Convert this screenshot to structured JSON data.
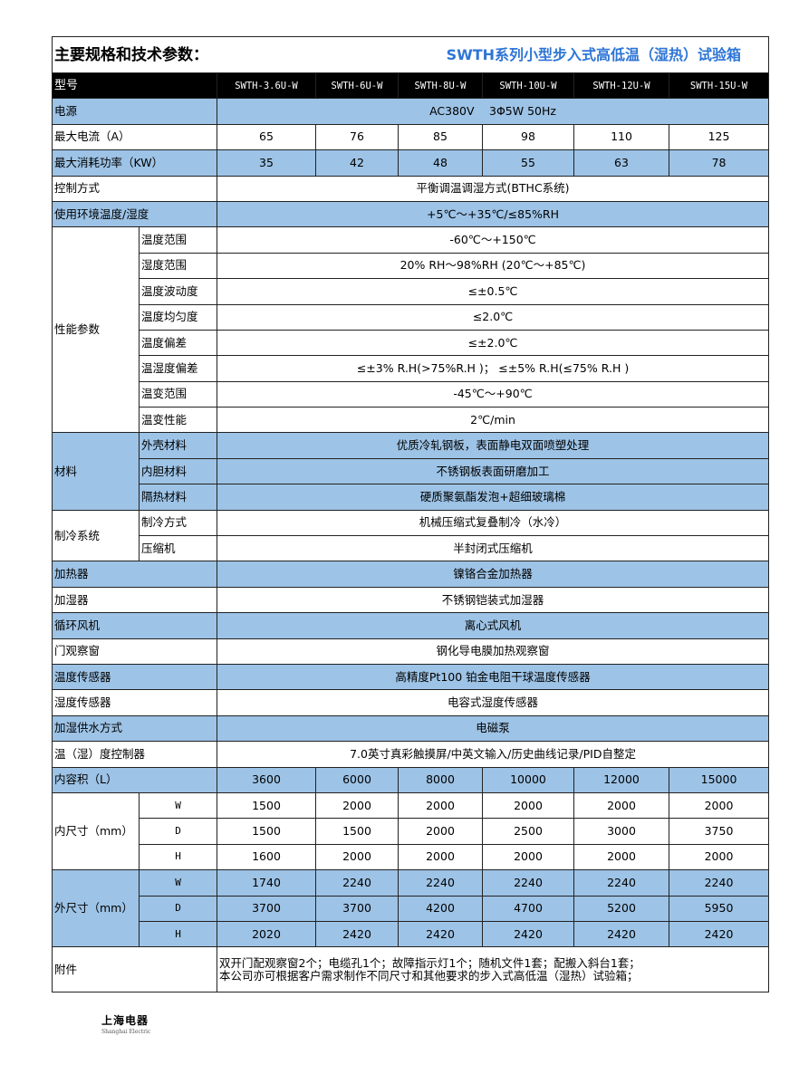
{
  "title": {
    "left": "主要规格和技术参数：",
    "right": "SWTH系列小型步入式高低温（湿热）试验箱"
  },
  "colors": {
    "row_blue": "#9dc3e6",
    "header_bg": "#000000",
    "title_accent": "#2e75d6"
  },
  "model_row": {
    "label": "型号",
    "models": [
      "SWTH-3.6U-W",
      "SWTH-6U-W",
      "SWTH-8U-W",
      "SWTH-10U-W",
      "SWTH-12U-W",
      "SWTH-15U-W"
    ]
  },
  "sections": [
    {
      "label": "电源",
      "value": "AC380V　 3Φ5W 50Hz",
      "blue": true
    },
    {
      "label": "最大电流（A）",
      "values": [
        "65",
        "76",
        "85",
        "98",
        "110",
        "125"
      ]
    },
    {
      "label": "最大消耗功率（KW）",
      "values": [
        "35",
        "42",
        "48",
        "55",
        "63",
        "78"
      ],
      "blue": true
    },
    {
      "label": "控制方式",
      "value": "平衡调温调湿方式(BTHC系统)"
    },
    {
      "label": "使用环境温度/湿度",
      "value": "+5℃～+35℃/≤85%RH",
      "blue": true
    },
    {
      "label": "性能参数",
      "items": [
        {
          "label": "温度范围",
          "value": "-60℃～+150℃"
        },
        {
          "label": "湿度范围",
          "value": "20% RH～98%RH (20℃～+85℃)"
        },
        {
          "label": "温度波动度",
          "value": "≤±0.5℃"
        },
        {
          "label": "温度均匀度",
          "value": "≤2.0℃"
        },
        {
          "label": "温度偏差",
          "value": "≤±2.0℃"
        },
        {
          "label": "温湿度偏差",
          "value": "≤±3% R.H(>75%R.H )；  ≤±5% R.H(≤75% R.H )"
        },
        {
          "label": "温变范围",
          "value": "-45℃～+90℃"
        },
        {
          "label": "温变性能",
          "value": "2℃/min"
        }
      ]
    },
    {
      "label": "材料",
      "blue": true,
      "items": [
        {
          "label": "外壳材料",
          "value": "优质冷轧钢板，表面静电双面喷塑处理"
        },
        {
          "label": "内胆材料",
          "value": "不锈钢板表面研磨加工"
        },
        {
          "label": "隔热材料",
          "value": "硬质聚氨酯发泡+超细玻璃棉"
        }
      ]
    },
    {
      "label": "制冷系统",
      "items": [
        {
          "label": "制冷方式",
          "value": "机械压缩式复叠制冷（水冷）"
        },
        {
          "label": "压缩机",
          "value": "半封闭式压缩机"
        }
      ]
    },
    {
      "label": "加热器",
      "value": "镍铬合金加热器",
      "blue": true
    },
    {
      "label": "加湿器",
      "value": "不锈钢铠装式加湿器"
    },
    {
      "label": "循环风机",
      "value": "离心式风机",
      "blue": true
    },
    {
      "label": "门观察窗",
      "value": "钢化导电膜加热观察窗"
    },
    {
      "label": "温度传感器",
      "value": "高精度Pt100 铂金电阻干球温度传感器",
      "blue": true
    },
    {
      "label": "湿度传感器",
      "value": "电容式湿度传感器"
    },
    {
      "label": "加湿供水方式",
      "value": "电磁泵",
      "blue": true
    },
    {
      "label": "温（湿）度控制器",
      "value": "7.0英寸真彩触摸屏/中英文输入/历史曲线记录/PID自整定"
    },
    {
      "label": "内容积（L）",
      "values": [
        "3600",
        "6000",
        "8000",
        "10000",
        "12000",
        "15000"
      ],
      "blue": true
    },
    {
      "label": "内尺寸（mm）",
      "dims": true,
      "items": [
        {
          "label": "W",
          "values": [
            "1500",
            "2000",
            "2000",
            "2000",
            "2000",
            "2000"
          ]
        },
        {
          "label": "D",
          "values": [
            "1500",
            "1500",
            "2000",
            "2500",
            "3000",
            "3750"
          ]
        },
        {
          "label": "H",
          "values": [
            "1600",
            "2000",
            "2000",
            "2000",
            "2000",
            "2000"
          ]
        }
      ]
    },
    {
      "label": "外尺寸（mm）",
      "dims": true,
      "blue": true,
      "items": [
        {
          "label": "W",
          "values": [
            "1740",
            "2240",
            "2240",
            "2240",
            "2240",
            "2240"
          ]
        },
        {
          "label": "D",
          "values": [
            "3700",
            "3700",
            "4200",
            "4700",
            "5200",
            "5950"
          ]
        },
        {
          "label": "H",
          "values": [
            "2020",
            "2420",
            "2420",
            "2420",
            "2420",
            "2420"
          ]
        }
      ]
    }
  ],
  "attachments": {
    "label": "附件",
    "lines": [
      "双开门配观察窗2个；电缆孔1个；故障指示灯1个；随机文件1套；配搬入斜台1套；",
      "本公司亦可根据客户需求制作不同尺寸和其他要求的步入式高低温（湿热）试验箱；"
    ]
  },
  "logo": {
    "cn": "上海电器",
    "en": "Shanghai Electric"
  }
}
